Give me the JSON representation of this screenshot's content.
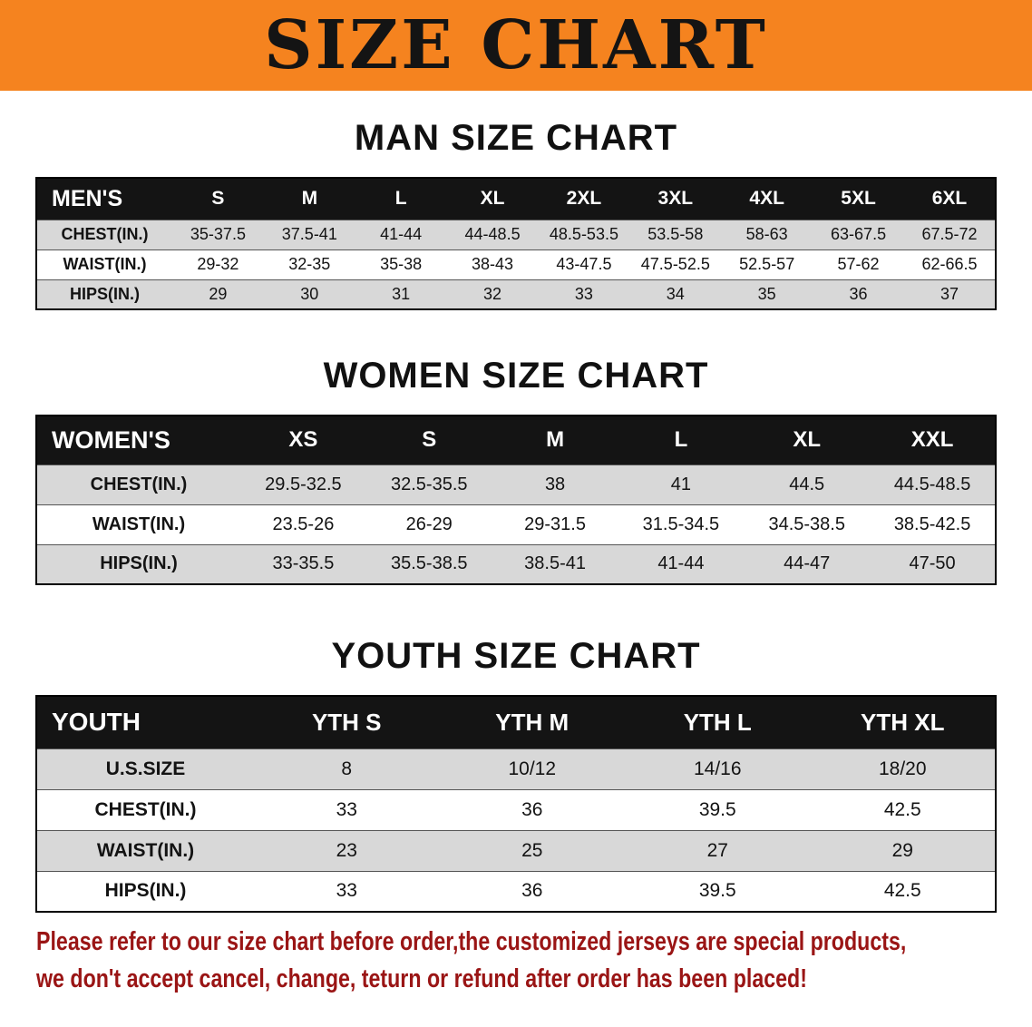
{
  "banner": {
    "title": "SIZE CHART",
    "bg_color": "#F5831F"
  },
  "chart_data": [
    {
      "type": "table",
      "title": "MAN SIZE CHART",
      "columns": [
        "MEN'S",
        "S",
        "M",
        "L",
        "XL",
        "2XL",
        "3XL",
        "4XL",
        "5XL",
        "6XL"
      ],
      "rows": [
        {
          "label": "CHEST(IN.)",
          "values": [
            "35-37.5",
            "37.5-41",
            "41-44",
            "44-48.5",
            "48.5-53.5",
            "53.5-58",
            "58-63",
            "63-67.5",
            "67.5-72"
          ]
        },
        {
          "label": "WAIST(IN.)",
          "values": [
            "29-32",
            "32-35",
            "35-38",
            "38-43",
            "43-47.5",
            "47.5-52.5",
            "52.5-57",
            "57-62",
            "62-66.5"
          ]
        },
        {
          "label": "HIPS(IN.)",
          "values": [
            "29",
            "30",
            "31",
            "32",
            "33",
            "34",
            "35",
            "36",
            "37"
          ]
        }
      ]
    },
    {
      "type": "table",
      "title": "WOMEN SIZE CHART",
      "columns": [
        "WOMEN'S",
        "XS",
        "S",
        "M",
        "L",
        "XL",
        "XXL"
      ],
      "rows": [
        {
          "label": "CHEST(IN.)",
          "values": [
            "29.5-32.5",
            "32.5-35.5",
            "38",
            "41",
            "44.5",
            "44.5-48.5"
          ]
        },
        {
          "label": "WAIST(IN.)",
          "values": [
            "23.5-26",
            "26-29",
            "29-31.5",
            "31.5-34.5",
            "34.5-38.5",
            "38.5-42.5"
          ]
        },
        {
          "label": "HIPS(IN.)",
          "values": [
            "33-35.5",
            "35.5-38.5",
            "38.5-41",
            "41-44",
            "44-47",
            "47-50"
          ]
        }
      ]
    },
    {
      "type": "table",
      "title": "YOUTH SIZE CHART",
      "columns": [
        "YOUTH",
        "YTH S",
        "YTH M",
        "YTH L",
        "YTH XL"
      ],
      "rows": [
        {
          "label": "U.S.SIZE",
          "values": [
            "8",
            "10/12",
            "14/16",
            "18/20"
          ]
        },
        {
          "label": "CHEST(IN.)",
          "values": [
            "33",
            "36",
            "39.5",
            "42.5"
          ]
        },
        {
          "label": "WAIST(IN.)",
          "values": [
            "23",
            "25",
            "27",
            "29"
          ]
        },
        {
          "label": "HIPS(IN.)",
          "values": [
            "33",
            "36",
            "39.5",
            "42.5"
          ]
        }
      ]
    }
  ],
  "disclaimer": {
    "line1": "Please refer to our size chart before order,the customized jerseys are special products,",
    "line2": "we don't accept cancel, change, teturn or refund after order has been placed!",
    "color": "#9A1515"
  }
}
